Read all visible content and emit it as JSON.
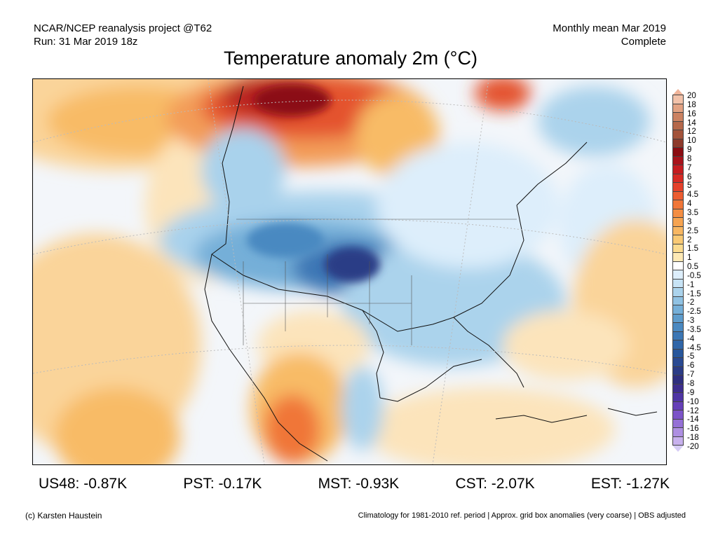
{
  "header": {
    "left_line1": "NCAR/NCEP reanalysis project @T62",
    "left_line2": "Run: 31 Mar 2019 18z",
    "right_line1": "Monthly mean Mar 2019",
    "right_line2": "Complete"
  },
  "title": "Temperature anomaly 2m (°C)",
  "legend": {
    "labels": [
      "20",
      "18",
      "16",
      "14",
      "12",
      "10",
      "9",
      "8",
      "7",
      "6",
      "5",
      "4.5",
      "4",
      "3.5",
      "3",
      "2.5",
      "2",
      "1.5",
      "1",
      "0.5",
      "-0.5",
      "-1",
      "-1.5",
      "-2",
      "-2.5",
      "-3",
      "-3.5",
      "-4",
      "-4.5",
      "-5",
      "-6",
      "-7",
      "-8",
      "-9",
      "-10",
      "-12",
      "-14",
      "-16",
      "-18",
      "-20"
    ],
    "colors": [
      "#f2c2aa",
      "#e2a283",
      "#cb8262",
      "#b5684b",
      "#a3533b",
      "#8e3a2b",
      "#8b0d12",
      "#a8131b",
      "#c51c20",
      "#d72a24",
      "#e4412b",
      "#ec5c30",
      "#f07638",
      "#f48e43",
      "#f6a451",
      "#f8b762",
      "#f9c974",
      "#fbdb8f",
      "#fde9b5",
      "#ffffff",
      "#ddeefb",
      "#c7e3f5",
      "#abd3ec",
      "#90c2e3",
      "#75afd8",
      "#5e9ccc",
      "#4a89c1",
      "#3c77b5",
      "#3066a8",
      "#28579c",
      "#2a4a92",
      "#2b3c86",
      "#2f2f7f",
      "#3e2e8e",
      "#4f35a4",
      "#653fb8",
      "#7c54c8",
      "#9570d6",
      "#ae8fe2",
      "#c8b1ee"
    ]
  },
  "regions": [
    {
      "label": "US48: -0.87K"
    },
    {
      "label": "PST: -0.17K"
    },
    {
      "label": "MST: -0.93K"
    },
    {
      "label": "CST: -2.07K"
    },
    {
      "label": "EST: -1.27K"
    }
  ],
  "footer": {
    "left": "(c) Karsten Haustein",
    "right": "Climatology for 1981-2010 ref. period | Approx. grid box anomalies (very coarse) | OBS adjusted"
  }
}
